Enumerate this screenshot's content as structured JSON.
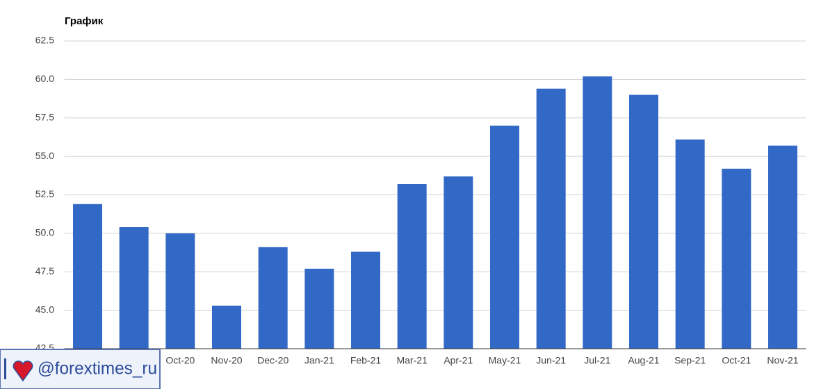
{
  "chart_data": {
    "type": "bar",
    "title": "График",
    "categories": [
      null,
      null,
      "Oct-20",
      "Nov-20",
      "Dec-20",
      "Jan-21",
      "Feb-21",
      "Mar-21",
      "Apr-21",
      "May-21",
      "Jun-21",
      "Jul-21",
      "Aug-21",
      "Sep-21",
      "Oct-21",
      "Nov-21"
    ],
    "values": [
      51.9,
      50.4,
      50.0,
      45.3,
      49.1,
      47.7,
      48.8,
      53.2,
      53.7,
      57.0,
      59.4,
      60.2,
      59.0,
      56.1,
      54.2,
      55.7
    ],
    "color": "#3369c6",
    "ylim": [
      42.5,
      62.5
    ],
    "yticks": [
      42.5,
      {
        "value": 45,
        "label": "45.0"
      },
      47.5,
      {
        "value": 50,
        "label": "50.0"
      },
      52.5,
      {
        "value": 55,
        "label": "55.0"
      },
      57.5,
      {
        "value": 60,
        "label": "60.0"
      },
      62.5
    ],
    "grid": true
  },
  "watermark": "@forextimes_ru"
}
